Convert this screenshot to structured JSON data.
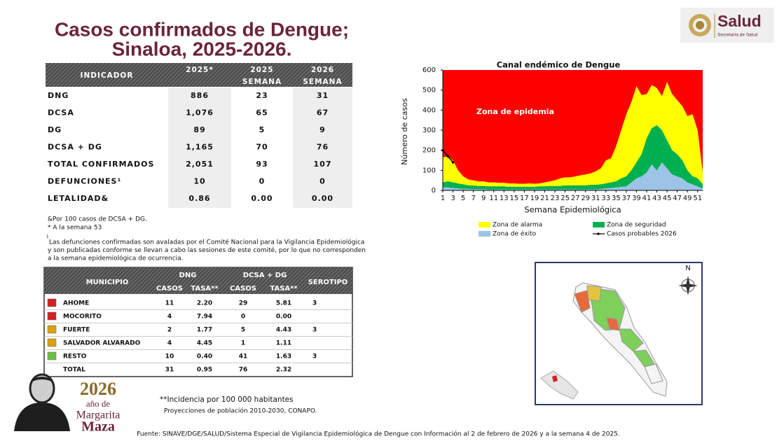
{
  "header": {
    "title_lines": [
      "Casos confirmados de Dengue;",
      "Sinaloa, 2025-2026."
    ]
  },
  "logo": {
    "name": "Salud",
    "subtitle": "Secretaría de Salud"
  },
  "table1": {
    "columns": [
      [
        "INDICADOR"
      ],
      [
        "2025*"
      ],
      [
        "2025",
        "SEMANA"
      ],
      [
        "2026",
        "SEMANA"
      ]
    ],
    "rows": [
      [
        "DNG",
        "886",
        "23",
        "31"
      ],
      [
        "DCSA",
        "1,076",
        "65",
        "67"
      ],
      [
        "DG",
        "89",
        "5",
        "9"
      ],
      [
        "DCSA + DG",
        "1,165",
        "70",
        "76"
      ],
      [
        "TOTAL CONFIRMADOS",
        "2,051",
        "93",
        "107"
      ],
      [
        "DEFUNCIONES¹",
        "10",
        "0",
        "0"
      ],
      [
        "LETALIDAD&",
        "0.86",
        "0.00",
        "0.00"
      ]
    ]
  },
  "notes": [
    "&Por 100 casos de DCSA + DG.",
    "* A la semana 53"
  ],
  "footnote": {
    "mark": "¹",
    "lines": [
      "Las defunciones confirmadas son avaladas por el Comité Nacional para la Vigilancia Epidemiológica",
      "y son publicadas conforme se llevan a cabo las sesiones de este comité, por lo que no corresponden",
      "a la semana epidemiológica de ocurrencia."
    ]
  },
  "table2": {
    "municipio": "MUNICIPIO",
    "groups": [
      "DNG",
      "DCSA + DG"
    ],
    "serotipo": "SEROTIPO",
    "subcolumns": [
      "CASOS",
      "TASA**",
      "CASOS",
      "TASA**"
    ],
    "rows": [
      {
        "color": "#d42020",
        "cells": [
          "AHOME",
          "11",
          "2.20",
          "29",
          "5.81",
          "3"
        ]
      },
      {
        "color": "#d42020",
        "cells": [
          "MOCORITO",
          "4",
          "7.94",
          "0",
          "0.00",
          null
        ]
      },
      {
        "color": "#d9a10a",
        "cells": [
          "FUERTE",
          "2",
          "1.77",
          "5",
          "4.43",
          "3"
        ]
      },
      {
        "color": "#d9a10a",
        "cells": [
          "SALVADOR ALVARADO",
          "4",
          "4.45",
          "1",
          "1.11",
          null
        ]
      },
      {
        "color": "#6cc040",
        "cells": [
          "RESTO",
          "10",
          "0.40",
          "41",
          "1.63",
          "3"
        ]
      },
      {
        "color": null,
        "cells": [
          "TOTAL",
          "31",
          "0.95",
          "76",
          "2.32",
          null
        ]
      }
    ]
  },
  "map": {
    "north": "N"
  },
  "year_logo": {
    "year": "2026",
    "lines": [
      "año de",
      "Margarita",
      "Maza"
    ]
  },
  "incidence_note": "**Incidencia por 100 000 habitantes",
  "population_note": "Proyecciones de población 2010-2030,  CONAPO.",
  "source": "Fuente: SINAVE/DGE/SALUD/Sistema Especial de Vigilancia Epidemiológica de Dengue con Información al 2 de febrero de 2026 y a la semana 4 de 2025.",
  "chart_data": {
    "type": "area",
    "title": "Canal endémico de Dengue",
    "x_label": "Semana Epidemiológica",
    "y_label": "Número de casos",
    "background": {
      "label": "Zona de epidemia",
      "color": "#ff0000"
    },
    "x": [
      1,
      2,
      3,
      4,
      5,
      6,
      7,
      8,
      9,
      10,
      11,
      12,
      13,
      14,
      15,
      16,
      17,
      18,
      19,
      20,
      21,
      22,
      23,
      24,
      25,
      26,
      27,
      28,
      29,
      30,
      31,
      32,
      33,
      34,
      35,
      36,
      37,
      38,
      39,
      40,
      41,
      42,
      43,
      44,
      45,
      46,
      47,
      48,
      49,
      50,
      51,
      52
    ],
    "xlim": [
      1,
      52
    ],
    "xticks": [
      1,
      3,
      5,
      7,
      9,
      11,
      13,
      15,
      17,
      19,
      21,
      23,
      25,
      27,
      29,
      31,
      33,
      35,
      37,
      39,
      41,
      43,
      45,
      47,
      49,
      51
    ],
    "ylim": [
      0,
      600
    ],
    "yticks": [
      0,
      100,
      200,
      300,
      400,
      500,
      600
    ],
    "series": [
      {
        "name": "Zona de alarma",
        "color": "#ffff00",
        "kind": "area",
        "values": [
          165,
          170,
          150,
          100,
          70,
          55,
          50,
          45,
          45,
          40,
          40,
          38,
          38,
          35,
          35,
          33,
          33,
          35,
          33,
          35,
          40,
          45,
          50,
          60,
          65,
          65,
          70,
          75,
          80,
          85,
          95,
          110,
          150,
          160,
          220,
          300,
          380,
          440,
          520,
          475,
          480,
          525,
          510,
          470,
          540,
          480,
          450,
          420,
          370,
          380,
          300,
          90
        ]
      },
      {
        "name": "Zona de seguridad",
        "color": "#00b050",
        "kind": "area",
        "values": [
          40,
          45,
          40,
          35,
          30,
          25,
          25,
          22,
          22,
          20,
          20,
          20,
          20,
          18,
          18,
          18,
          18,
          18,
          18,
          20,
          20,
          22,
          22,
          22,
          25,
          25,
          25,
          25,
          25,
          28,
          28,
          30,
          35,
          40,
          45,
          60,
          70,
          100,
          140,
          180,
          260,
          310,
          325,
          300,
          250,
          200,
          180,
          150,
          100,
          70,
          60,
          30
        ]
      },
      {
        "name": "Zona de éxito",
        "color": "#9dc3e6",
        "kind": "area",
        "values": [
          15,
          15,
          12,
          10,
          8,
          8,
          6,
          6,
          6,
          5,
          5,
          5,
          5,
          5,
          5,
          5,
          5,
          5,
          5,
          5,
          5,
          5,
          5,
          5,
          5,
          5,
          5,
          5,
          5,
          5,
          5,
          8,
          10,
          12,
          15,
          18,
          20,
          40,
          60,
          70,
          90,
          130,
          100,
          140,
          110,
          80,
          70,
          60,
          40,
          30,
          20,
          10
        ]
      },
      {
        "name": "Casos probables 2026",
        "color": "#000000",
        "kind": "line",
        "x": [
          1,
          2,
          3
        ],
        "values": [
          200,
          170,
          140
        ]
      }
    ]
  }
}
